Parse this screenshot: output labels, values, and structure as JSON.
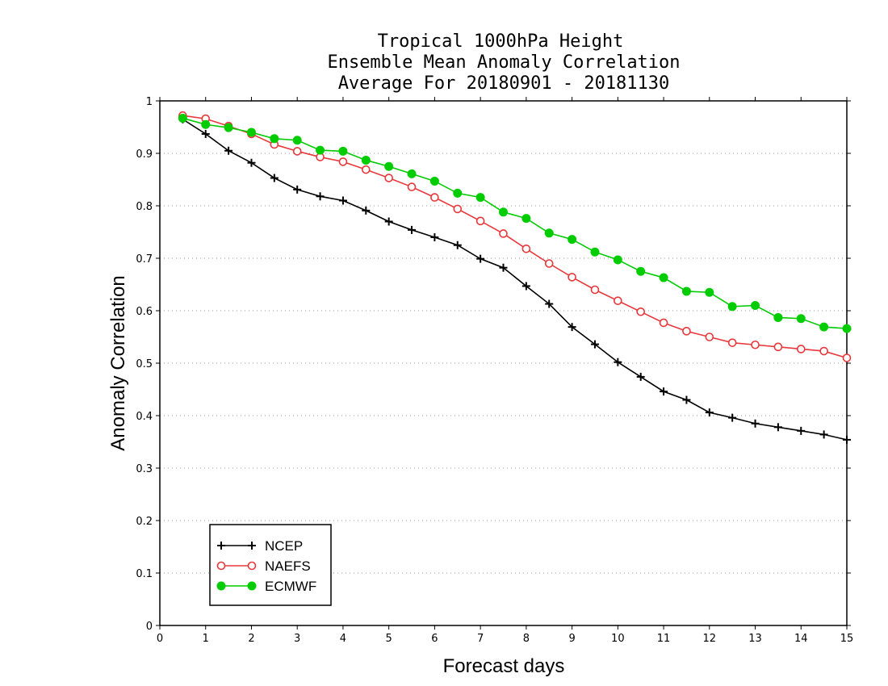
{
  "chart_data": {
    "type": "line",
    "title": [
      "Tropical 1000hPa Height",
      "Ensemble Mean Anomaly Correlation",
      "Average For 20180901 - 20181130"
    ],
    "xlabel": "Forecast days",
    "ylabel": "Anomaly Correlation",
    "xlim": [
      0,
      15
    ],
    "ylim": [
      0,
      1
    ],
    "xticks": [
      "0",
      "1",
      "2",
      "3",
      "4",
      "5",
      "6",
      "7",
      "8",
      "9",
      "10",
      "11",
      "12",
      "13",
      "14",
      "15"
    ],
    "yticks": [
      "0",
      "0.1",
      "0.2",
      "0.3",
      "0.4",
      "0.5",
      "0.6",
      "0.7",
      "0.8",
      "0.9",
      "1"
    ],
    "grid": "horizontal dotted",
    "legend_position": "bottom-left",
    "x": [
      0.5,
      1,
      1.5,
      2,
      2.5,
      3,
      3.5,
      4,
      4.5,
      5,
      5.5,
      6,
      6.5,
      7,
      7.5,
      8,
      8.5,
      9,
      9.5,
      10,
      10.5,
      11,
      11.5,
      12,
      12.5,
      13,
      13.5,
      14,
      14.5,
      15
    ],
    "series": [
      {
        "name": "NCEP",
        "color": "#000000",
        "marker": "plus",
        "values": [
          0.965,
          0.937,
          0.905,
          0.882,
          0.853,
          0.831,
          0.818,
          0.81,
          0.791,
          0.77,
          0.754,
          0.74,
          0.725,
          0.699,
          0.682,
          0.647,
          0.613,
          0.569,
          0.536,
          0.502,
          0.474,
          0.446,
          0.43,
          0.406,
          0.396,
          0.385,
          0.378,
          0.371,
          0.364,
          0.354
        ]
      },
      {
        "name": "NAEFS",
        "color": "#e8383b",
        "marker": "open-circle",
        "values": [
          0.972,
          0.966,
          0.952,
          0.937,
          0.917,
          0.904,
          0.893,
          0.884,
          0.869,
          0.853,
          0.836,
          0.816,
          0.794,
          0.771,
          0.747,
          0.718,
          0.69,
          0.664,
          0.64,
          0.619,
          0.598,
          0.577,
          0.561,
          0.55,
          0.539,
          0.535,
          0.531,
          0.527,
          0.523,
          0.51
        ]
      },
      {
        "name": "ECMWF",
        "color": "#00cc00",
        "marker": "filled-circle",
        "values": [
          0.967,
          0.955,
          0.949,
          0.94,
          0.928,
          0.925,
          0.906,
          0.904,
          0.887,
          0.875,
          0.861,
          0.847,
          0.824,
          0.816,
          0.788,
          0.776,
          0.748,
          0.736,
          0.712,
          0.697,
          0.675,
          0.663,
          0.637,
          0.635,
          0.608,
          0.61,
          0.587,
          0.585,
          0.569,
          0.566
        ]
      }
    ]
  }
}
